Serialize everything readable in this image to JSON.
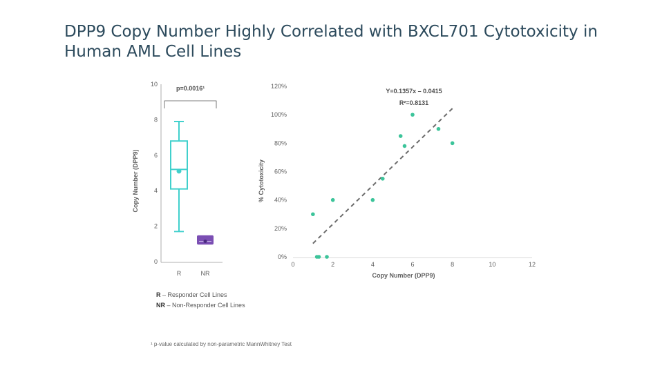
{
  "slide": {
    "title_line1": "DPP9 Copy Number Highly Correlated with BXCL701 Cytotoxicity in",
    "title_line2": "Human AML Cell Lines",
    "legend_r_key": "R",
    "legend_r_text": " – Responder Cell Lines",
    "legend_nr_key": "NR",
    "legend_nr_text": " – Non-Responder Cell Lines",
    "footnote": "¹ p-value calculated by non-parametric MannWhitney Test"
  },
  "chart_data": [
    {
      "type": "box",
      "ylabel": "Copy Number (DPP9)",
      "ylim": [
        0,
        10
      ],
      "yticks": [
        "0",
        "2",
        "4",
        "6",
        "8",
        "10"
      ],
      "categories": [
        "R",
        "NR"
      ],
      "pvalue_label": "p=0.0016¹",
      "colors": {
        "R": "#40d0cc",
        "NR": "#7b4fb3"
      },
      "boxes": [
        {
          "name": "R",
          "min": 1.7,
          "q1": 4.1,
          "median": 5.2,
          "q3": 6.8,
          "max": 7.9,
          "mean": 5.1
        },
        {
          "name": "NR",
          "min": 1.0,
          "q1": 1.0,
          "median": 1.15,
          "q3": 1.45,
          "max": 1.5,
          "mean": 1.15
        }
      ]
    },
    {
      "type": "scatter",
      "xlabel": "Copy Number (DPP9)",
      "ylabel": "% Cytotoxicity",
      "xlim": [
        0,
        12
      ],
      "ylim": [
        0,
        1.2
      ],
      "xticks": [
        "0",
        "2",
        "4",
        "6",
        "8",
        "10",
        "12"
      ],
      "yticks": [
        "0%",
        "20%",
        "40%",
        "60%",
        "80%",
        "100%",
        "120%"
      ],
      "equation": "Y=0.1357x – 0.0415",
      "r_squared": "R²=0.8131",
      "trendline": {
        "slope": 0.1357,
        "intercept": -0.0415,
        "x_range": [
          1,
          8
        ]
      },
      "point_color": "#3cc49a",
      "trend_color": "#6b6b6b",
      "points": [
        {
          "x": 1.0,
          "y": 0.3
        },
        {
          "x": 1.2,
          "y": 0.0
        },
        {
          "x": 1.3,
          "y": 0.0
        },
        {
          "x": 1.7,
          "y": 0.0
        },
        {
          "x": 2.0,
          "y": 0.4
        },
        {
          "x": 4.0,
          "y": 0.4
        },
        {
          "x": 4.5,
          "y": 0.55
        },
        {
          "x": 5.4,
          "y": 0.85
        },
        {
          "x": 5.6,
          "y": 0.78
        },
        {
          "x": 6.0,
          "y": 1.0
        },
        {
          "x": 7.3,
          "y": 0.9
        },
        {
          "x": 8.0,
          "y": 0.8
        }
      ]
    }
  ]
}
